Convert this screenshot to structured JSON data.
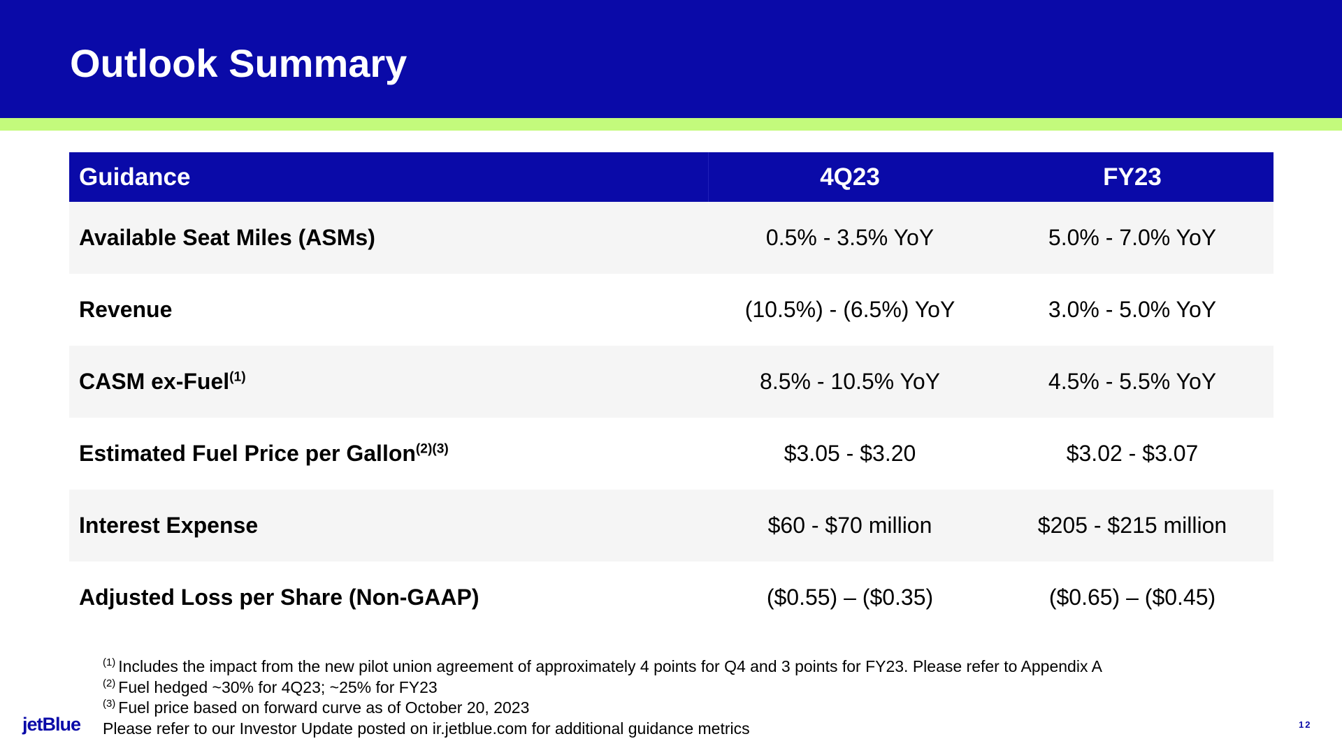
{
  "header": {
    "title": "Outlook Summary"
  },
  "table": {
    "columns": [
      "Guidance",
      "4Q23",
      "FY23"
    ],
    "rows": [
      {
        "label": "Available Seat Miles (ASMs)",
        "q4": "0.5% - 3.5% YoY",
        "fy": "5.0% - 7.0% YoY"
      },
      {
        "label": "Revenue",
        "q4": "(10.5%) - (6.5%) YoY",
        "fy": "3.0% - 5.0% YoY"
      },
      {
        "label": "CASM ex-Fuel",
        "note": "(1)",
        "q4": "8.5% - 10.5% YoY",
        "fy": "4.5% - 5.5% YoY"
      },
      {
        "label": "Estimated Fuel Price per Gallon",
        "note": "(2)(3)",
        "q4": "$3.05 - $3.20",
        "fy": "$3.02 - $3.07"
      },
      {
        "label": "Interest Expense",
        "q4": "$60 - $70 million",
        "fy": "$205 - $215 million"
      },
      {
        "label": "Adjusted Loss per Share (Non-GAAP)",
        "q4": "($0.55) – ($0.35)",
        "fy": "($0.65) – ($0.45)"
      }
    ]
  },
  "footnotes": [
    {
      "marker": "(1)",
      "text": "Includes the impact from the new pilot union agreement of approximately 4 points for Q4 and 3 points for FY23. Please refer to Appendix A"
    },
    {
      "marker": "(2)",
      "text": "Fuel hedged ~30% for 4Q23; ~25% for FY23"
    },
    {
      "marker": "(3)",
      "text": "Fuel price based on forward curve as of October 20, 2023"
    },
    {
      "text": "Please refer to our Investor Update posted on ir.jetblue.com for additional guidance metrics"
    }
  ],
  "footer": {
    "logo": "jetBlue",
    "page": "12"
  }
}
